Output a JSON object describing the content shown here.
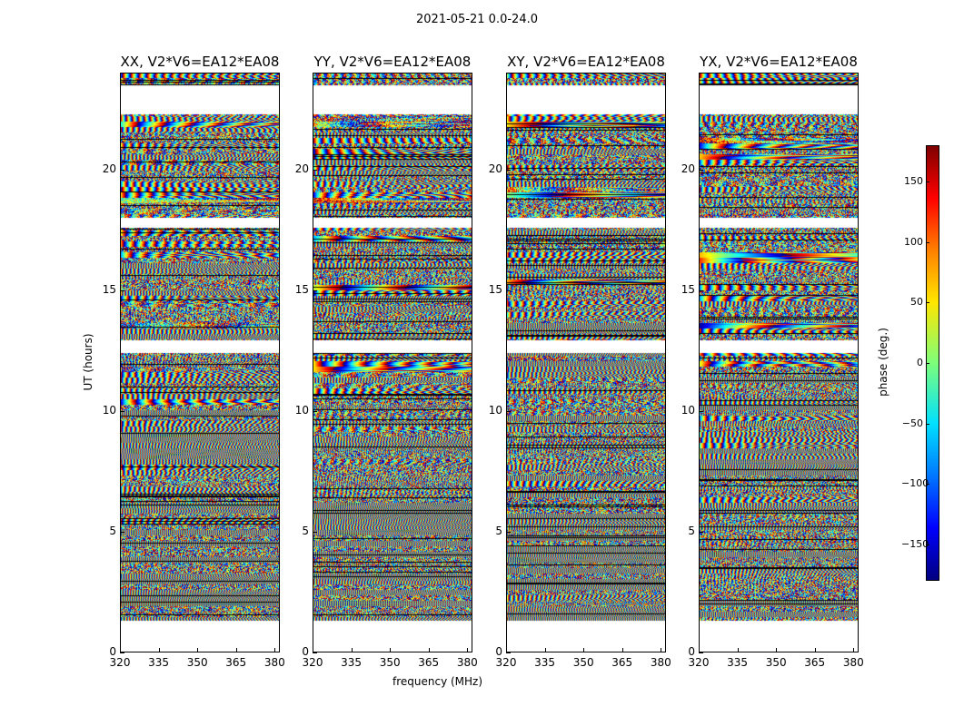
{
  "figure": {
    "suptitle": "2021-05-21 0.0-24.0"
  },
  "chart_data": {
    "type": "heatmap",
    "panels": [
      {
        "title": "XX, V2*V6=EA12*EA08",
        "seed": 11
      },
      {
        "title": "YY, V2*V6=EA12*EA08",
        "seed": 23
      },
      {
        "title": "XY, V2*V6=EA12*EA08",
        "seed": 37
      },
      {
        "title": "YX, V2*V6=EA12*EA08",
        "seed": 53
      }
    ],
    "xlabel": "frequency (MHz)",
    "ylabel": "UT (hours)",
    "xlim": [
      320,
      382
    ],
    "ylim": [
      0,
      24
    ],
    "xticks": [
      320,
      335,
      350,
      365,
      380
    ],
    "yticks": [
      0,
      5,
      10,
      15,
      20
    ],
    "colorbar": {
      "label": "phase (deg.)",
      "range": [
        -180,
        180
      ],
      "ticks": [
        150,
        100,
        50,
        0,
        -50,
        -100,
        -150
      ],
      "tick_labels": [
        "150",
        "100",
        "50",
        "0",
        "−50",
        "−100",
        "−150"
      ],
      "colormap": "jet"
    },
    "gaps_hours": [
      [
        0.0,
        1.35
      ],
      [
        12.4,
        12.95
      ],
      [
        17.6,
        18.0
      ],
      [
        22.3,
        23.5
      ]
    ]
  }
}
